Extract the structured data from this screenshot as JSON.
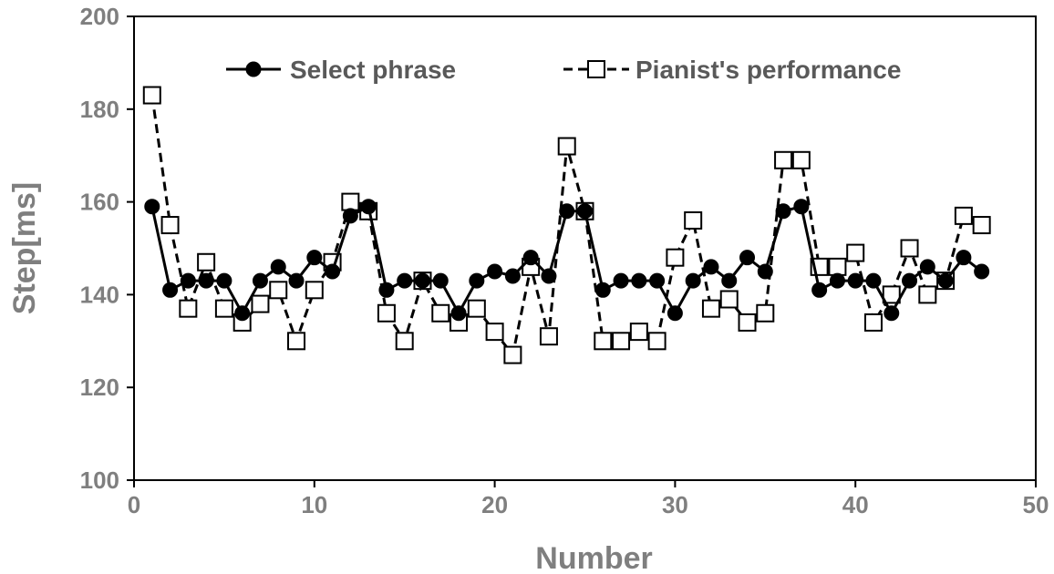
{
  "chart_data": {
    "type": "line",
    "xlabel": "Number",
    "ylabel": "Step[ms]",
    "xlim": [
      0,
      50
    ],
    "ylim": [
      100,
      200
    ],
    "xticks": [
      0,
      10,
      20,
      30,
      40,
      50
    ],
    "yticks": [
      100,
      120,
      140,
      160,
      180,
      200
    ],
    "grid": false,
    "legend_position": "top-right",
    "x": [
      1,
      2,
      3,
      4,
      5,
      6,
      7,
      8,
      9,
      10,
      11,
      12,
      13,
      14,
      15,
      16,
      17,
      18,
      19,
      20,
      21,
      22,
      23,
      24,
      25,
      26,
      27,
      28,
      29,
      30,
      31,
      32,
      33,
      34,
      35,
      36,
      37,
      38,
      39,
      40,
      41,
      42,
      43,
      44,
      45,
      46,
      47
    ],
    "series": [
      {
        "name": "Select phrase",
        "marker": "filled-circle",
        "line": "solid",
        "color": "#000000",
        "values": [
          159,
          141,
          143,
          143,
          143,
          136,
          143,
          146,
          143,
          148,
          145,
          157,
          159,
          141,
          143,
          143,
          143,
          136,
          143,
          145,
          144,
          148,
          144,
          158,
          158,
          141,
          143,
          143,
          143,
          136,
          143,
          146,
          143,
          148,
          145,
          158,
          159,
          141,
          143,
          143,
          143,
          136,
          143,
          146,
          143,
          148,
          145
        ]
      },
      {
        "name": "Pianist's performance",
        "marker": "open-square",
        "line": "dashed",
        "color": "#000000",
        "values": [
          183,
          155,
          137,
          147,
          137,
          134,
          138,
          141,
          130,
          141,
          147,
          160,
          158,
          136,
          130,
          143,
          136,
          134,
          137,
          132,
          127,
          146,
          131,
          172,
          158,
          130,
          130,
          132,
          130,
          148,
          156,
          137,
          139,
          134,
          136,
          169,
          169,
          146,
          146,
          149,
          134,
          140,
          150,
          140,
          143,
          157,
          155
        ]
      }
    ]
  }
}
